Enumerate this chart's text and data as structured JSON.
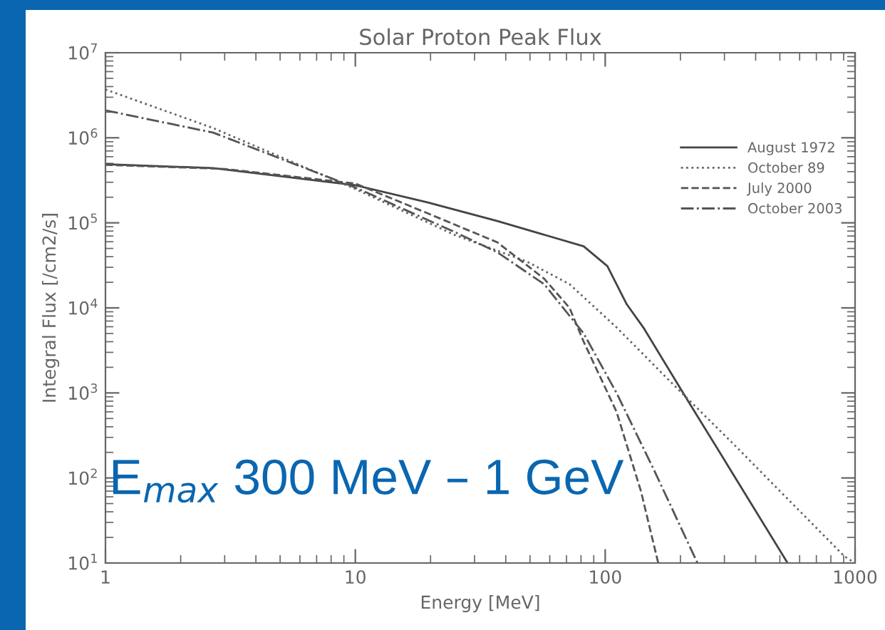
{
  "chart_data": {
    "type": "line",
    "title": "Solar Proton Peak Flux",
    "xlabel": "Energy [MeV]",
    "ylabel": "Integral Flux [/cm2/s]",
    "log": "xy",
    "xlim": [
      1,
      1000
    ],
    "ylim": [
      10,
      10000000
    ],
    "xticks": [
      1,
      10,
      100,
      1000
    ],
    "yticks": [
      {
        "value": 10,
        "label": "10$^{1}$"
      },
      {
        "value": 100,
        "label": "10$^{2}$"
      },
      {
        "value": 1000,
        "label": "10$^{3}$"
      },
      {
        "value": 10000,
        "label": "10$^{4}$"
      },
      {
        "value": 100000,
        "label": "10$^{5}$"
      },
      {
        "value": 1000000,
        "label": "10$^{6}$"
      },
      {
        "value": 10000000,
        "label": "10$^{7}$"
      }
    ],
    "grid": false,
    "legend": "top right",
    "marker": "none",
    "annotations": [
      "E$_{max}$ 300 MeV – 1 GeV"
    ],
    "series": [
      {
        "name": "August 1972",
        "color": "#444444",
        "line_style": "solid",
        "x": [
          1,
          2.7,
          10,
          19.4,
          37,
          82,
          102,
          122,
          142,
          207,
          318,
          537
        ],
        "values": [
          490000,
          440000,
          277000,
          174000,
          105000,
          53000,
          31000,
          11000,
          5900,
          955,
          123,
          10
        ]
      },
      {
        "name": "October 89",
        "color": "#666666",
        "line_style": "dotted",
        "x": [
          1,
          2.7,
          10,
          25,
          48.6,
          72,
          111,
          187,
          318,
          906,
          1000
        ],
        "values": [
          3700000,
          1300000,
          250000,
          72000,
          35000,
          19000,
          5900,
          1260,
          270,
          12,
          10
        ]
      },
      {
        "name": "July 2000",
        "color": "#555555",
        "line_style": "dashed",
        "x": [
          1,
          3,
          10,
          19.4,
          37,
          57,
          72,
          82,
          111,
          139,
          163
        ],
        "values": [
          480000,
          430000,
          290000,
          130000,
          59000,
          22000,
          10000,
          4000,
          600,
          70,
          10
        ]
      },
      {
        "name": "October 2003",
        "color": "#555555",
        "line_style": "dashdot",
        "x": [
          1,
          2.7,
          10,
          25,
          37,
          57,
          82,
          111,
          157,
          234
        ],
        "values": [
          2100000,
          1150000,
          260000,
          78000,
          45000,
          19000,
          5000,
          1000,
          123,
          10
        ]
      }
    ]
  }
}
